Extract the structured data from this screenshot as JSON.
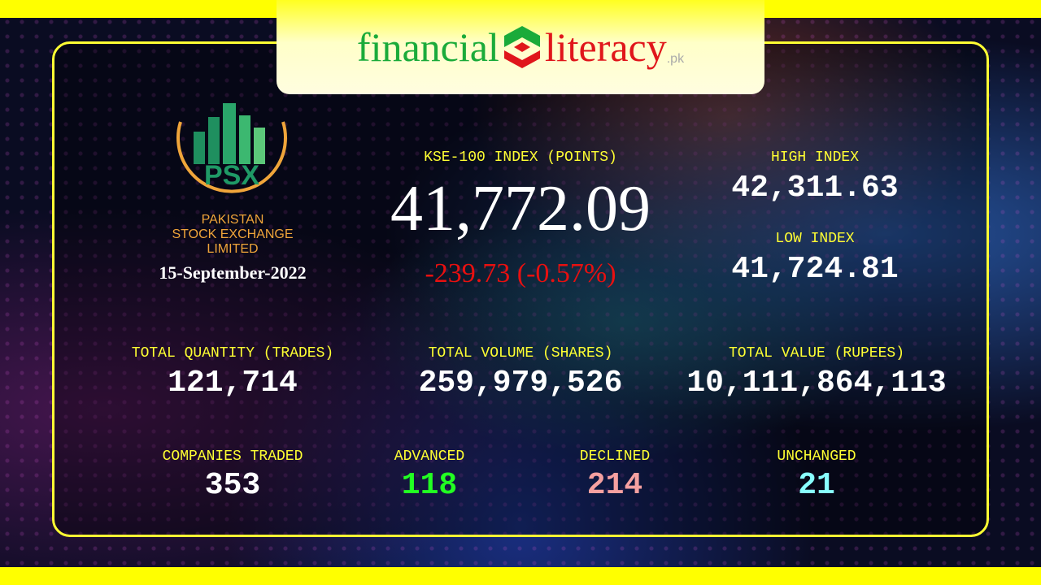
{
  "brand": {
    "part1": "financial",
    "part2": "literacy",
    "suffix": ".pk"
  },
  "psx": {
    "logo_text": "PSX",
    "name_line1": "PAKISTAN",
    "name_line2": "STOCK EXCHANGE",
    "name_line3": "LIMITED",
    "date": "15-September-2022"
  },
  "kse": {
    "label": "KSE-100 INDEX (POINTS)",
    "value": "41,772.09",
    "change": "-239.73 (-0.57%)"
  },
  "high": {
    "label": "HIGH INDEX",
    "value": "42,311.63"
  },
  "low": {
    "label": "LOW INDEX",
    "value": "41,724.81"
  },
  "quantity": {
    "label": "TOTAL QUANTITY (TRADES)",
    "value": "121,714"
  },
  "volume": {
    "label": "TOTAL VOLUME (SHARES)",
    "value": "259,979,526"
  },
  "total_value": {
    "label": "TOTAL VALUE (RUPEES)",
    "value": "10,111,864,113"
  },
  "companies": {
    "label": "COMPANIES TRADED",
    "value": "353"
  },
  "advanced": {
    "label": "ADVANCED",
    "value": "118"
  },
  "declined": {
    "label": "DECLINED",
    "value": "214"
  },
  "unchanged": {
    "label": "UNCHANGED",
    "value": "21"
  },
  "colors": {
    "label": "#ffff33",
    "negative": "#e81010",
    "advanced": "#22ff22",
    "declined": "#f5a0a0",
    "unchanged": "#88ffff",
    "frame": "#ffff33"
  }
}
